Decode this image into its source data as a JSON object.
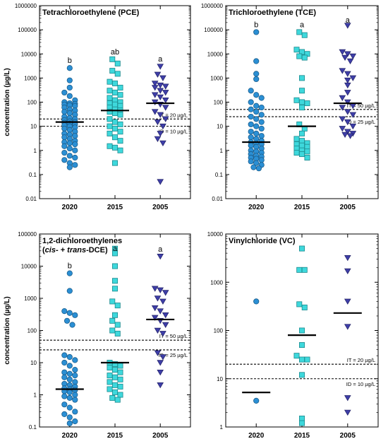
{
  "chart_data": [
    {
      "type": "scatter",
      "title": "Tetrachloroethylene (PCE)",
      "title_line2": "",
      "ylabel": "concentration (µg/L)",
      "yscale": "log",
      "ylim": [
        0.01,
        1000000
      ],
      "categories": [
        "2020",
        "2015",
        "2005"
      ],
      "letters": [
        "b",
        "ab",
        "a"
      ],
      "thresholds": [
        {
          "label": "IT = 20 µg/L",
          "value": 20
        },
        {
          "label": "ID = 10 µg/L",
          "value": 10
        }
      ],
      "series": [
        {
          "marker": "circle",
          "color": "#2b8fd4",
          "median": 15,
          "values": [
            2600,
            800,
            400,
            250,
            180,
            120,
            100,
            90,
            85,
            80,
            75,
            70,
            60,
            50,
            45,
            40,
            35,
            30,
            25,
            22,
            20,
            18,
            16,
            15,
            14,
            13,
            12,
            11,
            10,
            9,
            8,
            7,
            6,
            5,
            4.5,
            4,
            3.5,
            3,
            2.5,
            2.2,
            2,
            1.8,
            1.5,
            1.2,
            1,
            0.8,
            0.6,
            0.5,
            0.4,
            0.3,
            0.25,
            0.2
          ]
        },
        {
          "marker": "square",
          "color": "#3ed8dc",
          "median": 45,
          "values": [
            6000,
            4000,
            2000,
            1500,
            700,
            600,
            400,
            300,
            250,
            200,
            150,
            120,
            100,
            90,
            80,
            70,
            60,
            50,
            45,
            40,
            35,
            30,
            20,
            15,
            12,
            10,
            8,
            6,
            5,
            3.5,
            2.5,
            1.5,
            1.3,
            1,
            0.3
          ]
        },
        {
          "marker": "triangle",
          "color": "#3e3ea8",
          "median": 90,
          "values": [
            3000,
            1400,
            1000,
            600,
            500,
            450,
            400,
            300,
            250,
            200,
            160,
            120,
            100,
            80,
            60,
            40,
            30,
            20,
            15,
            10,
            5,
            3,
            2,
            0.05
          ]
        }
      ]
    },
    {
      "type": "scatter",
      "title": "Trichloroethylene (TCE)",
      "title_line2": "",
      "ylabel": "",
      "yscale": "log",
      "ylim": [
        0.01,
        1000000
      ],
      "categories": [
        "2020",
        "2015",
        "2005"
      ],
      "letters": [
        "b",
        "a",
        "a"
      ],
      "thresholds": [
        {
          "label": "IT = 50 µg/L",
          "value": 50
        },
        {
          "label": "ID = 25 µg/L",
          "value": 25
        }
      ],
      "series": [
        {
          "marker": "circle",
          "color": "#2b8fd4",
          "median": 2.2,
          "values": [
            80000,
            5000,
            1500,
            900,
            300,
            200,
            150,
            100,
            70,
            60,
            50,
            40,
            30,
            25,
            20,
            15,
            12,
            10,
            8,
            6,
            5,
            4,
            3.5,
            3,
            2.5,
            2.2,
            2,
            1.8,
            1.6,
            1.4,
            1.2,
            1,
            0.9,
            0.8,
            0.7,
            0.6,
            0.55,
            0.5,
            0.45,
            0.4,
            0.35,
            0.3,
            0.25,
            0.2,
            0.18
          ]
        },
        {
          "marker": "square",
          "color": "#3ed8dc",
          "median": 10,
          "values": [
            80000,
            60000,
            15000,
            12000,
            10000,
            8000,
            7000,
            1000,
            300,
            120,
            100,
            90,
            60,
            12,
            8,
            5,
            3,
            2.5,
            2,
            1.8,
            1.6,
            1.4,
            1.2,
            1,
            0.9,
            0.8,
            0.7,
            0.5
          ]
        },
        {
          "marker": "triangle",
          "color": "#3e3ea8",
          "median": 90,
          "values": [
            150000,
            12000,
            10000,
            8000,
            7000,
            5000,
            2000,
            1500,
            1000,
            800,
            500,
            250,
            150,
            100,
            70,
            60,
            40,
            30,
            20,
            15,
            10,
            8,
            6,
            5,
            4.5,
            4
          ]
        }
      ]
    },
    {
      "type": "scatter",
      "title": "1,2-dichloroethylenes",
      "title_line2": "(cis- + trans-DCE)",
      "ylabel": "concentration (µg/L)",
      "yscale": "log",
      "ylim": [
        0.1,
        100000
      ],
      "categories": [
        "2020",
        "2015",
        "2005"
      ],
      "letters": [
        "b",
        "a",
        "a"
      ],
      "thresholds": [
        {
          "label": "IT = 50 µg/L",
          "value": 50
        },
        {
          "label": "ID = 25 µg/L",
          "value": 25
        }
      ],
      "series": [
        {
          "marker": "circle",
          "color": "#2b8fd4",
          "median": 1.5,
          "values": [
            6000,
            1700,
            400,
            350,
            300,
            200,
            150,
            17,
            15,
            12,
            10,
            8,
            6,
            5,
            4.5,
            4,
            3.5,
            3,
            2.5,
            2.2,
            2,
            1.8,
            1.6,
            1.5,
            1.4,
            1.3,
            1.2,
            1,
            0.9,
            0.8,
            0.7,
            0.5,
            0.4,
            0.3,
            0.25,
            0.2,
            0.15,
            0.13
          ]
        },
        {
          "marker": "square",
          "color": "#3ed8dc",
          "median": 10,
          "values": [
            35000,
            25000,
            10000,
            3500,
            2000,
            800,
            600,
            300,
            200,
            150,
            100,
            80,
            10,
            9,
            8,
            7,
            6,
            5,
            4,
            3.5,
            3,
            2.5,
            2,
            1.8,
            1.5,
            1.2,
            1,
            0.8,
            0.7
          ]
        },
        {
          "marker": "triangle",
          "color": "#3e3ea8",
          "median": 220,
          "values": [
            20000,
            2000,
            1800,
            1500,
            1000,
            800,
            500,
            400,
            300,
            250,
            200,
            150,
            100,
            80,
            20,
            15,
            10,
            5,
            2
          ]
        }
      ]
    },
    {
      "type": "scatter",
      "title": "Vinylchloride (VC)",
      "title_line2": "",
      "ylabel": "",
      "yscale": "log",
      "ylim": [
        1,
        10000
      ],
      "categories": [
        "2020",
        "2015",
        "2005"
      ],
      "letters": [
        "",
        "",
        ""
      ],
      "thresholds": [
        {
          "label": "IT = 20 µg/L",
          "value": 20
        },
        {
          "label": "ID = 10 µg/L",
          "value": 10
        }
      ],
      "series": [
        {
          "marker": "circle",
          "color": "#2b8fd4",
          "median": 5.2,
          "values": [
            400,
            3.5
          ]
        },
        {
          "marker": "square",
          "color": "#3ed8dc",
          "median": 80,
          "values": [
            5000,
            1800,
            1800,
            350,
            300,
            100,
            50,
            30,
            25,
            25,
            12,
            1.5,
            1.2
          ]
        },
        {
          "marker": "triangle",
          "color": "#3e3ea8",
          "median": 230,
          "values": [
            3200,
            1700,
            400,
            120,
            4,
            2
          ]
        }
      ]
    }
  ]
}
